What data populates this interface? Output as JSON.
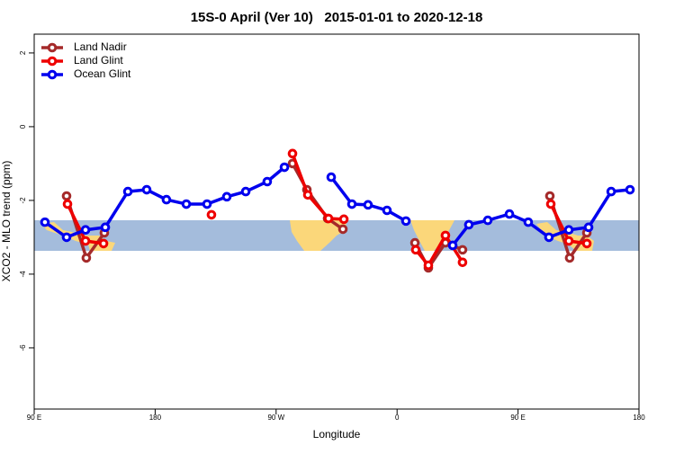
{
  "chart_data": {
    "type": "line",
    "title": "15S-0 April (Ver 10)   2015-01-01 to 2020-12-18",
    "x_label": "Longitude",
    "y_label": "XCO2 - MLO trend (ppm)",
    "xlim": [
      90,
      540
    ],
    "xticks": [
      {
        "value": 90,
        "label": "90 E"
      },
      180,
      {
        "value": 270,
        "label": "90 W"
      },
      {
        "value": 360,
        "label": "0"
      },
      {
        "value": 450,
        "label": "90 E"
      },
      {
        "value": 540,
        "label": "180"
      }
    ],
    "ylim": [
      -7.66,
      2.51
    ],
    "yticks": [
      2,
      0,
      -2,
      -4,
      -6
    ],
    "legend": "top-left",
    "series": [
      {
        "name": "Land Nadir",
        "color": "#a52a2a",
        "x": [
          114.1,
          128.8,
          142.2,
          null,
          282.2,
          292.9,
          308.3,
          319.7,
          null,
          373.3,
          383.3,
          396.0,
          408.7,
          null,
          473.7,
          488.4,
          501.2
        ],
        "values": [
          -1.88,
          -3.56,
          -2.88,
          null,
          -1.0,
          -1.71,
          -2.49,
          -2.78,
          null,
          -3.15,
          -3.83,
          -3.15,
          -3.34,
          null,
          -1.88,
          -3.56,
          -2.88
        ]
      },
      {
        "name": "Land Glint",
        "color": "#ee0000",
        "x": [
          114.8,
          128.2,
          141.6,
          null,
          221.9,
          null,
          282.2,
          293.6,
          309.0,
          320.4,
          null,
          373.9,
          383.3,
          396.0,
          408.7,
          null,
          474.4,
          487.8,
          501.2
        ],
        "values": [
          -2.1,
          -3.1,
          -3.17,
          null,
          -2.39,
          null,
          -0.73,
          -1.85,
          -2.49,
          -2.51,
          null,
          -3.34,
          -3.76,
          -2.95,
          -3.68,
          null,
          -2.1,
          -3.1,
          -3.17
        ]
      },
      {
        "name": "Ocean Glint",
        "color": "#0000ee",
        "x": [
          98.0,
          114.1,
          128.2,
          142.9,
          159.7,
          173.7,
          188.4,
          203.2,
          218.6,
          233.3,
          247.4,
          263.4,
          276.2,
          null,
          311.0,
          326.4,
          338.4,
          352.5,
          366.6,
          null,
          401.4,
          413.4,
          427.5,
          443.6,
          457.6,
          473.0,
          487.8,
          502.5,
          519.3,
          533.3
        ],
        "values": [
          -2.59,
          -3.0,
          -2.8,
          -2.73,
          -1.76,
          -1.71,
          -1.98,
          -2.1,
          -2.1,
          -1.9,
          -1.76,
          -1.49,
          -1.1,
          null,
          -1.37,
          -2.1,
          -2.12,
          -2.27,
          -2.56,
          null,
          -3.22,
          -2.66,
          -2.54,
          -2.37,
          -2.59,
          -3.0,
          -2.8,
          -2.73,
          -1.76,
          -1.71
        ]
      }
    ]
  }
}
